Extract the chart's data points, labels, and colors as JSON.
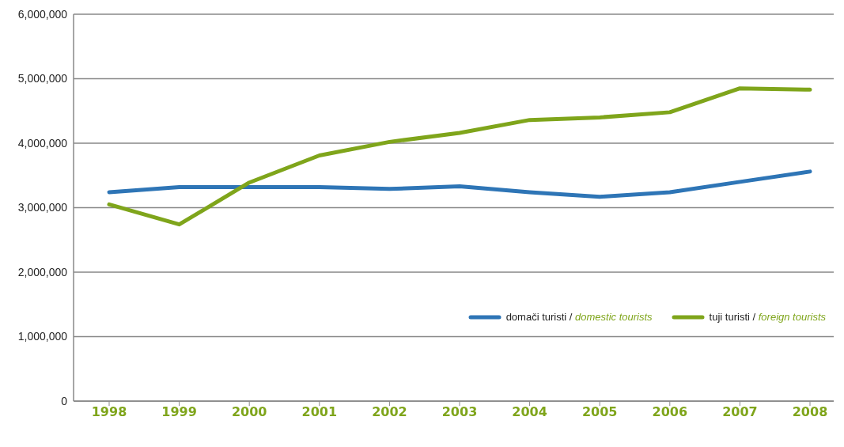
{
  "chart_data": {
    "type": "line",
    "categories": [
      "1998",
      "1999",
      "2000",
      "2001",
      "2002",
      "2003",
      "2004",
      "2005",
      "2006",
      "2007",
      "2008"
    ],
    "series": [
      {
        "name": "domači turisti / domestic tourists",
        "color": "#2e75b6",
        "values": [
          3240000,
          3320000,
          3320000,
          3320000,
          3290000,
          3330000,
          3240000,
          3170000,
          3240000,
          3400000,
          3560000
        ]
      },
      {
        "name": "tuji turisti / foreign tourists",
        "color": "#7fa51b",
        "values": [
          3050000,
          2740000,
          3390000,
          3810000,
          4020000,
          4160000,
          4360000,
          4400000,
          4480000,
          4850000,
          4830000
        ]
      }
    ],
    "ylim": [
      0,
      6000000
    ],
    "yticks": [
      0,
      {
        "value": 1000000,
        "label": "1,000,000"
      },
      {
        "value": 2000000,
        "label": "2,000,000"
      },
      {
        "value": 3000000,
        "label": "3,000,000"
      },
      {
        "value": 4000000,
        "label": "4,000,000"
      },
      {
        "value": 5000000,
        "label": "5,000,000"
      },
      {
        "value": 6000000,
        "label": "6,000,000"
      }
    ],
    "grid": "y",
    "legend": "bottom right",
    "marker": "none",
    "line_style": "solid"
  }
}
